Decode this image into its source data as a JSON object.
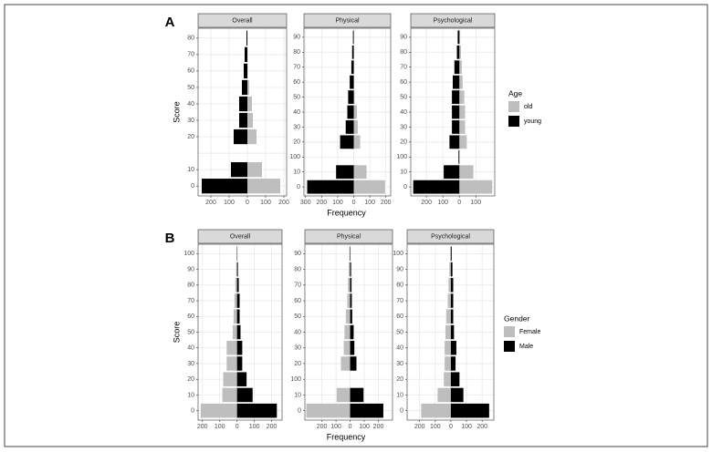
{
  "chart_data": [
    {
      "type": "bar",
      "label": "A",
      "y_label": "Score",
      "x_label": "Frequency",
      "legend_title": "Age",
      "series": [
        {
          "name": "old",
          "color": "#bebebe",
          "side": "right"
        },
        {
          "name": "young",
          "color": "#000000",
          "side": "left"
        }
      ],
      "facets": [
        {
          "title": "Overall",
          "categories": [
            "0",
            "10",
            null,
            "20",
            "30",
            "40",
            "50",
            "60",
            "70",
            "80"
          ],
          "values": [
            [
              180,
              80,
              0,
              50,
              30,
              25,
              10,
              2,
              1,
              0
            ],
            [
              250,
              90,
              0,
              75,
              45,
              45,
              30,
              20,
              15,
              5
            ]
          ],
          "xlim": [
            -270,
            215
          ],
          "xticks": [
            {
              "value": -200,
              "label": "200"
            },
            {
              "value": -100,
              "label": "100"
            },
            0,
            100,
            200
          ]
        },
        {
          "title": "Physical",
          "categories": [
            "0",
            "10",
            "100",
            "20",
            "30",
            "40",
            "50",
            "60",
            "70",
            "80",
            "90"
          ],
          "values": [
            [
              195,
              80,
              0,
              40,
              25,
              20,
              5,
              2,
              1,
              0,
              0
            ],
            [
              290,
              110,
              0,
              85,
              50,
              40,
              35,
              25,
              15,
              10,
              5
            ]
          ],
          "xlim": [
            -310,
            230
          ],
          "xticks": [
            {
              "value": -300,
              "label": "300"
            },
            {
              "value": -200,
              "label": "200"
            },
            {
              "value": -100,
              "label": "100"
            },
            0,
            100,
            200
          ]
        },
        {
          "title": "Psychological",
          "categories": [
            "0",
            "10",
            "100",
            "20",
            "30",
            "40",
            "50",
            "60",
            "70",
            "80",
            "90"
          ],
          "values": [
            [
              200,
              85,
              0,
              45,
              35,
              35,
              30,
              20,
              15,
              10,
              5
            ],
            [
              280,
              95,
              5,
              60,
              45,
              45,
              45,
              40,
              30,
              15,
              10
            ]
          ],
          "xlim": [
            -295,
            215
          ],
          "xticks": [
            {
              "value": -200,
              "label": "200"
            },
            {
              "value": -100,
              "label": "100"
            },
            0,
            100
          ]
        }
      ]
    },
    {
      "type": "bar",
      "label": "B",
      "y_label": "Score",
      "x_label": "Frequency",
      "legend_title": "Gender",
      "series": [
        {
          "name": "Female",
          "color": "#bebebe",
          "side": "left"
        },
        {
          "name": "Male",
          "color": "#000000",
          "side": "right"
        }
      ],
      "facets": [
        {
          "title": "Overall",
          "categories": [
            "0",
            "10",
            "20",
            "30",
            "40",
            "50",
            "60",
            "70",
            "80",
            "90",
            "100"
          ],
          "values": [
            [
              210,
              85,
              80,
              60,
              60,
              25,
              20,
              15,
              10,
              5,
              2
            ],
            [
              230,
              90,
              55,
              30,
              30,
              20,
              15,
              15,
              10,
              5,
              2
            ]
          ],
          "xlim": [
            -225,
            260
          ],
          "xticks": [
            {
              "value": -200,
              "label": "200"
            },
            {
              "value": -100,
              "label": "100"
            },
            0,
            100,
            200
          ]
        },
        {
          "title": "Physical",
          "categories": [
            "0",
            "10",
            "100",
            "20",
            "30",
            "40",
            "50",
            "60",
            "70",
            "80",
            "90"
          ],
          "values": [
            [
              310,
              95,
              0,
              65,
              45,
              40,
              30,
              20,
              15,
              10,
              5
            ],
            [
              235,
              95,
              0,
              45,
              30,
              25,
              15,
              12,
              10,
              7,
              3
            ]
          ],
          "xlim": [
            -320,
            300
          ],
          "xticks": [
            {
              "value": -200,
              "label": "200"
            },
            {
              "value": -100,
              "label": "100"
            },
            0,
            100,
            200
          ]
        },
        {
          "title": "Psychological",
          "categories": [
            "0",
            "10",
            "20",
            "30",
            "40",
            "50",
            "60",
            "70",
            "80",
            "90",
            "100"
          ],
          "values": [
            [
              190,
              85,
              45,
              40,
              40,
              35,
              30,
              20,
              15,
              10,
              5
            ],
            [
              245,
              80,
              55,
              30,
              35,
              20,
              15,
              15,
              15,
              10,
              5
            ]
          ],
          "xlim": [
            -280,
            275
          ],
          "xticks": [
            {
              "value": -200,
              "label": "200"
            },
            {
              "value": -100,
              "label": "100"
            },
            0,
            100,
            200
          ]
        }
      ]
    }
  ]
}
